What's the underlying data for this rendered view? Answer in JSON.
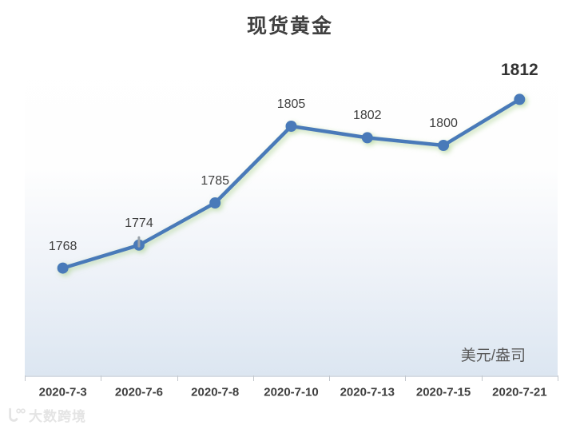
{
  "title": "现货黄金",
  "unit_label": "美元/盎司",
  "watermark": {
    "text": "大数跨境",
    "icon": "logo-icon"
  },
  "colors": {
    "line": "#4a7ab9",
    "marker": "#4a7ab9",
    "glow": "#a9d18e",
    "label": "#3f3f3f",
    "axis": "#d6dce4",
    "tick": "#c3c7cd",
    "plot_gradient_bottom": "#dce6f1",
    "cursor_artifact": "#99a1a9"
  },
  "chart_data": {
    "type": "line",
    "title": "现货黄金",
    "categories": [
      "2020-7-3",
      "2020-7-6",
      "2020-7-8",
      "2020-7-10",
      "2020-7-13",
      "2020-7-15",
      "2020-7-21"
    ],
    "values": [
      1768,
      1774,
      1785,
      1805,
      1802,
      1800,
      1812
    ],
    "unit": "美元/盎司",
    "ylim": [
      1740,
      1825
    ],
    "grid": false,
    "legend": "none",
    "highlight_last_label": true,
    "data_labels": "above",
    "tick_overlay_index": 1
  }
}
